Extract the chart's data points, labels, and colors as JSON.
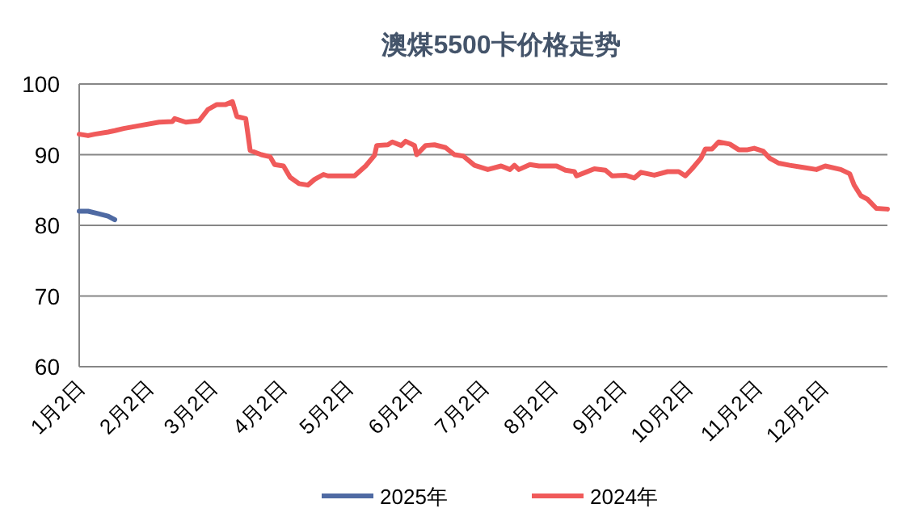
{
  "chart_data": {
    "type": "line",
    "title": "澳煤5500卡价格走势",
    "series": [
      {
        "name": "2025年",
        "color": "#4f6aa3",
        "x": [
          "--01-02",
          "--01-06",
          "--01-10",
          "--01-15",
          "--01-18"
        ],
        "values": [
          82.0,
          82.0,
          81.7,
          81.3,
          80.8
        ]
      },
      {
        "name": "2024年",
        "color": "#f05a5a",
        "x": [
          "--01-02",
          "--01-06",
          "--01-09",
          "--01-15",
          "--01-18",
          "--01-22",
          "--01-29",
          "--02-07",
          "--02-13",
          "--02-14",
          "--02-19",
          "--02-25",
          "--02-29",
          "--03-04",
          "--03-08",
          "--03-11",
          "--03-13",
          "--03-17",
          "--03-19",
          "--03-24",
          "--03-28",
          "--03-30",
          "--04-03",
          "--04-06",
          "--04-10",
          "--04-14",
          "--04-17",
          "--04-21",
          "--04-23",
          "--05-01",
          "--05-05",
          "--05-10",
          "--05-14",
          "--05-15",
          "--05-20",
          "--05-22",
          "--05-26",
          "--05-28",
          "--06-01",
          "--06-02",
          "--06-06",
          "--06-10",
          "--06-15",
          "--06-19",
          "--06-23",
          "--06-28",
          "--07-04",
          "--07-10",
          "--07-14",
          "--07-16",
          "--07-18",
          "--07-23",
          "--07-27",
          "--08-04",
          "--08-08",
          "--08-12",
          "--08-13",
          "--08-17",
          "--08-21",
          "--08-26",
          "--08-29",
          "--09-04",
          "--09-08",
          "--09-11",
          "--09-17",
          "--09-23",
          "--09-28",
          "--10-01",
          "--10-04",
          "--10-08",
          "--10-10",
          "--10-13",
          "--10-16",
          "--10-21",
          "--10-25",
          "--10-29",
          "--11-01",
          "--11-05",
          "--11-08",
          "--11-12",
          "--11-17",
          "--11-23",
          "--11-29",
          "--12-03",
          "--12-10",
          "--12-14",
          "--12-16",
          "--12-19",
          "--12-22",
          "--12-26",
          "--12-31"
        ],
        "values": [
          92.9,
          92.7,
          92.9,
          93.2,
          93.4,
          93.7,
          94.1,
          94.6,
          94.7,
          95.1,
          94.6,
          94.8,
          96.4,
          97.1,
          97.1,
          97.5,
          95.4,
          95.1,
          90.6,
          90.0,
          89.7,
          88.6,
          88.4,
          86.8,
          85.9,
          85.7,
          86.5,
          87.2,
          87.0,
          87.0,
          87.0,
          88.4,
          89.9,
          91.3,
          91.4,
          91.8,
          91.3,
          91.9,
          91.3,
          90.0,
          91.3,
          91.4,
          91.0,
          90.0,
          89.8,
          88.5,
          87.9,
          88.4,
          87.9,
          88.5,
          87.9,
          88.6,
          88.4,
          88.4,
          87.8,
          87.6,
          87.0,
          87.5,
          88.0,
          87.8,
          87.0,
          87.1,
          86.7,
          87.5,
          87.1,
          87.6,
          87.6,
          87.0,
          88.0,
          89.5,
          90.8,
          90.8,
          91.8,
          91.5,
          90.7,
          90.7,
          90.9,
          90.5,
          89.5,
          88.8,
          88.5,
          88.2,
          87.9,
          88.4,
          87.9,
          87.3,
          85.7,
          84.2,
          83.7,
          82.4,
          82.3
        ]
      }
    ],
    "xlim": [
      "--01-02",
      "--12-31"
    ],
    "xticks": [
      {
        "value": "--01-02",
        "label": "1月2日"
      },
      {
        "value": "--02-02",
        "label": "2月2日"
      },
      {
        "value": "--03-02",
        "label": "3月2日"
      },
      {
        "value": "--04-02",
        "label": "4月2日"
      },
      {
        "value": "--05-02",
        "label": "5月2日"
      },
      {
        "value": "--06-02",
        "label": "6月2日"
      },
      {
        "value": "--07-02",
        "label": "7月2日"
      },
      {
        "value": "--08-02",
        "label": "8月2日"
      },
      {
        "value": "--09-02",
        "label": "9月2日"
      },
      {
        "value": "--10-02",
        "label": "10月2日"
      },
      {
        "value": "--11-02",
        "label": "11月2日"
      },
      {
        "value": "--12-02",
        "label": "12月2日"
      }
    ],
    "ylim": [
      60,
      100
    ],
    "yticks": [
      60,
      70,
      80,
      90,
      100
    ],
    "grid": "y",
    "legend": "bottom",
    "marker": "none",
    "line_style": "solid"
  }
}
